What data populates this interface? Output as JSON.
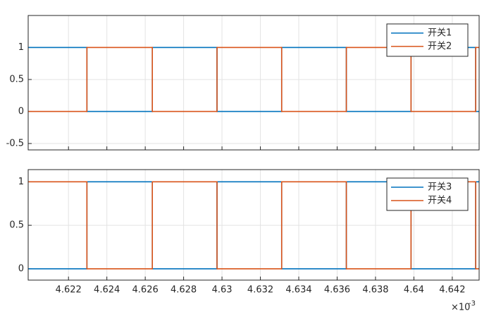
{
  "chart_data": [
    {
      "type": "line",
      "grid": true,
      "legend": "upper right",
      "show_xtick_labels": false,
      "x": [
        4.6199,
        4.62296,
        4.62296,
        4.62637,
        4.62637,
        4.62974,
        4.62974,
        4.63311,
        4.63311,
        4.63648,
        4.63648,
        4.63985,
        4.63985,
        4.64322,
        4.64322,
        4.6434
      ],
      "series": [
        {
          "name": "开关1",
          "color": "#0072bd",
          "values": [
            1,
            1,
            0,
            0,
            1,
            1,
            0,
            0,
            1,
            1,
            0,
            0,
            1,
            1,
            0,
            0
          ]
        },
        {
          "name": "开关2",
          "color": "#d95319",
          "values": [
            0,
            0,
            1,
            1,
            0,
            0,
            1,
            1,
            0,
            0,
            1,
            1,
            0,
            0,
            1,
            1
          ]
        }
      ],
      "xlim": [
        4.6199,
        4.6434
      ],
      "xticks": [
        4.622,
        4.624,
        4.626,
        4.628,
        4.63,
        4.632,
        4.634,
        4.636,
        4.638,
        4.64,
        4.642
      ],
      "ylim": [
        -0.6,
        1.5
      ],
      "yticks": [
        -0.5,
        0,
        0.5,
        1
      ]
    },
    {
      "type": "line",
      "grid": true,
      "legend": "upper right",
      "show_xtick_labels": true,
      "x": [
        4.6199,
        4.62296,
        4.62296,
        4.62637,
        4.62637,
        4.62974,
        4.62974,
        4.63311,
        4.63311,
        4.63648,
        4.63648,
        4.63985,
        4.63985,
        4.64322,
        4.64322,
        4.6434
      ],
      "series": [
        {
          "name": "开关3",
          "color": "#0072bd",
          "values": [
            0,
            0,
            1,
            1,
            0,
            0,
            1,
            1,
            0,
            0,
            1,
            1,
            0,
            0,
            1,
            1
          ]
        },
        {
          "name": "开关4",
          "color": "#d95319",
          "values": [
            1,
            1,
            0,
            0,
            1,
            1,
            0,
            0,
            1,
            1,
            0,
            0,
            1,
            1,
            0,
            0
          ]
        }
      ],
      "xlim": [
        4.6199,
        4.6434
      ],
      "xticks": [
        4.622,
        4.624,
        4.626,
        4.628,
        4.63,
        4.632,
        4.634,
        4.636,
        4.638,
        4.64,
        4.642
      ],
      "ylim": [
        -0.13,
        1.14
      ],
      "yticks": [
        0,
        0.5,
        1
      ],
      "x_multiplier": {
        "base": "×10",
        "exponent": "-3"
      }
    }
  ]
}
